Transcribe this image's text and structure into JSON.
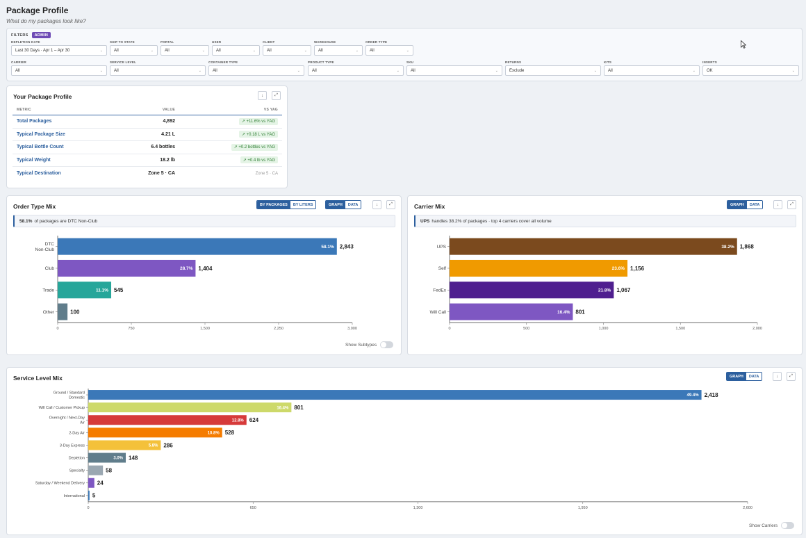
{
  "page": {
    "title": "Package Profile",
    "subtitle": "What do my packages look like?"
  },
  "filters": {
    "label": "FILTERS",
    "badge": "ADMIN",
    "row1": [
      {
        "label": "DEPLETION DATE",
        "value": "Last 30 Days · Apr 1 – Apr 30"
      },
      {
        "label": "SHIP TO STATE",
        "value": "All"
      },
      {
        "label": "PORTAL",
        "value": "All"
      },
      {
        "label": "USER",
        "value": "All"
      },
      {
        "label": "CLIENT",
        "value": "All"
      },
      {
        "label": "WAREHOUSE",
        "value": "All"
      },
      {
        "label": "ORDER TYPE",
        "value": "All"
      }
    ],
    "row2": [
      {
        "label": "CARRIER",
        "value": "All"
      },
      {
        "label": "SERVICE LEVEL",
        "value": "All"
      },
      {
        "label": "CONTAINER TYPE",
        "value": "All"
      },
      {
        "label": "PRODUCT TYPE",
        "value": "All"
      },
      {
        "label": "SKU",
        "value": "All"
      },
      {
        "label": "RETURNS",
        "value": "Exclude"
      },
      {
        "label": "KITS",
        "value": "All"
      },
      {
        "label": "INSERTS",
        "value": "OK"
      }
    ]
  },
  "profile": {
    "title": "Your Package Profile",
    "headers": {
      "metric": "METRIC",
      "value": "VALUE",
      "yag": "VS YAG"
    },
    "rows": [
      {
        "metric": "Total Packages",
        "value": "4,892",
        "yag": "↗ +11.6% vs YAG",
        "style": "badge"
      },
      {
        "metric": "Typical Package Size",
        "value": "4.21 L",
        "yag": "↗ +0.18 L vs YAG",
        "style": "badge"
      },
      {
        "metric": "Typical Bottle Count",
        "value": "6.4 bottles",
        "yag": "↗ +0.2 bottles vs YAG",
        "style": "badge"
      },
      {
        "metric": "Typical Weight",
        "value": "18.2 lb",
        "yag": "↗ +0.4 lb vs YAG",
        "style": "badge"
      },
      {
        "metric": "Typical Destination",
        "value": "Zone 5 · CA",
        "yag": "Zone 5 · CA",
        "style": "plain"
      }
    ]
  },
  "controls": {
    "by_packages": "BY PACKAGES",
    "by_liters": "BY LITERS",
    "graph": "GRAPH",
    "data": "DATA",
    "download_icon": "↓",
    "expand_icon": "⤢"
  },
  "order_type": {
    "title": "Order Type Mix",
    "insight_bold": "58.1%",
    "insight_rest": "of packages are DTC Non-Club",
    "toggle_label": "Show Subtypes"
  },
  "carrier": {
    "title": "Carrier Mix",
    "insight_bold": "UPS",
    "insight_rest": "handles 38.2% of packages · top 4 carriers cover all volume"
  },
  "service": {
    "title": "Service Level Mix",
    "toggle_label": "Show Carriers"
  },
  "chart_data": [
    {
      "type": "bar",
      "orientation": "horizontal",
      "title": "Order Type Mix",
      "categories": [
        "DTC Non-Club",
        "Club",
        "Trade",
        "Other"
      ],
      "category_lines": [
        [
          "DTC",
          "Non-Club"
        ],
        [
          "Club"
        ],
        [
          "Trade"
        ],
        [
          "Other"
        ]
      ],
      "values": [
        2843,
        1404,
        545,
        100
      ],
      "value_labels": [
        "2,843",
        "1,404",
        "545",
        "100"
      ],
      "percent_labels": [
        "58.1%",
        "28.7%",
        "11.1%",
        ""
      ],
      "colors": [
        "#3b78b8",
        "#7e57c2",
        "#26a69a",
        "#607d8b"
      ],
      "xlim": [
        0,
        3000
      ],
      "ticks": [
        0,
        750,
        1500,
        2250,
        3000
      ],
      "tick_labels": [
        "0",
        "750",
        "1,500",
        "2,250",
        "3,000"
      ]
    },
    {
      "type": "bar",
      "orientation": "horizontal",
      "title": "Carrier Mix",
      "categories": [
        "UPS",
        "Self",
        "FedEx",
        "Will Call"
      ],
      "category_lines": [
        [
          "UPS"
        ],
        [
          "Self"
        ],
        [
          "FedEx"
        ],
        [
          "Will Call"
        ]
      ],
      "values": [
        1868,
        1156,
        1067,
        801
      ],
      "value_labels": [
        "1,868",
        "1,156",
        "1,067",
        "801"
      ],
      "percent_labels": [
        "38.2%",
        "23.6%",
        "21.8%",
        "16.4%"
      ],
      "colors": [
        "#7b4a1e",
        "#f09a00",
        "#4f1f8f",
        "#7e57c2"
      ],
      "xlim": [
        0,
        2000
      ],
      "ticks": [
        0,
        500,
        1000,
        1500,
        2000
      ],
      "tick_labels": [
        "0",
        "500",
        "1,000",
        "1,500",
        "2,000"
      ]
    },
    {
      "type": "bar",
      "orientation": "horizontal",
      "title": "Service Level Mix",
      "categories": [
        "Ground / Standard Domestic",
        "Will Call / Customer Pickup",
        "Overnight / Next-Day Air",
        "2-Day Air",
        "3-Day Express",
        "Depletion",
        "Specialty",
        "Saturday / Weekend Delivery",
        "International"
      ],
      "category_lines": [
        [
          "Ground / Standard",
          "Domestic"
        ],
        [
          "Will Call / Customer Pickup"
        ],
        [
          "Overnight / Next-Day",
          "Air"
        ],
        [
          "2-Day Air"
        ],
        [
          "3-Day Express"
        ],
        [
          "Depletion"
        ],
        [
          "Specialty"
        ],
        [
          "Saturday / Weekend Delivery"
        ],
        [
          "International"
        ]
      ],
      "values": [
        2418,
        801,
        624,
        528,
        286,
        148,
        58,
        24,
        5
      ],
      "value_labels": [
        "2,418",
        "801",
        "624",
        "528",
        "286",
        "148",
        "58",
        "24",
        "5"
      ],
      "percent_labels": [
        "49.4%",
        "16.4%",
        "12.8%",
        "10.8%",
        "5.8%",
        "3.0%",
        "",
        "",
        ""
      ],
      "colors": [
        "#3b78b8",
        "#cdd96a",
        "#d63a3a",
        "#f57c00",
        "#f4c13a",
        "#607d8b",
        "#9aa7b1",
        "#7e57c2",
        "#3b78b8"
      ],
      "xlim": [
        0,
        2600
      ],
      "ticks": [
        0,
        650,
        1300,
        1950,
        2600
      ],
      "tick_labels": [
        "0",
        "650",
        "1,300",
        "1,950",
        "2,600"
      ]
    }
  ]
}
